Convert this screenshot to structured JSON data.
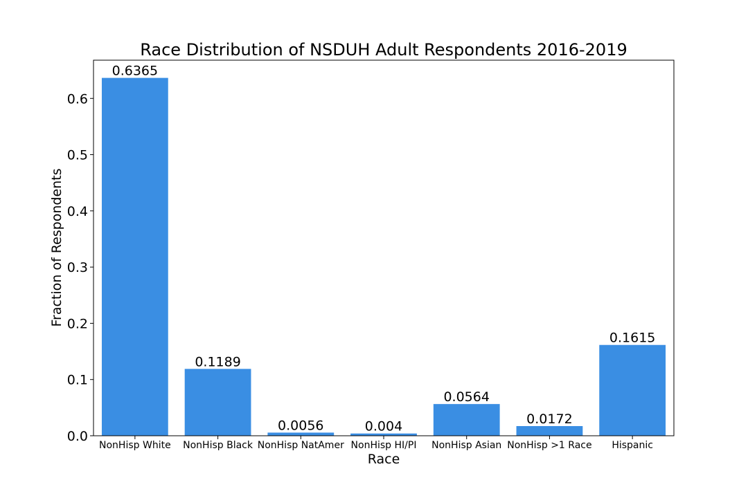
{
  "chart_data": {
    "type": "bar",
    "title": "Race Distribution of NSDUH Adult Respondents 2016-2019",
    "xlabel": "Race",
    "ylabel": "Fraction of Respondents",
    "categories": [
      "NonHisp White",
      "NonHisp Black",
      "NonHisp NatAmer",
      "NonHisp HI/PI",
      "NonHisp Asian",
      "NonHisp >1 Race",
      "Hispanic"
    ],
    "values": [
      0.6365,
      0.1189,
      0.0056,
      0.004,
      0.0564,
      0.0172,
      0.1615
    ],
    "data_labels": [
      "0.6365",
      "0.1189",
      "0.0056",
      "0.004",
      "0.0564",
      "0.0172",
      "0.1615"
    ],
    "ylim": [
      0,
      0.668
    ],
    "yticks": [
      0.0,
      0.1,
      0.2,
      0.3,
      0.4,
      0.5,
      0.6
    ],
    "ytick_labels": [
      "0.0",
      "0.1",
      "0.2",
      "0.3",
      "0.4",
      "0.5",
      "0.6"
    ],
    "grid": false,
    "legend": "none",
    "bar_color": "#3a8ee3"
  }
}
